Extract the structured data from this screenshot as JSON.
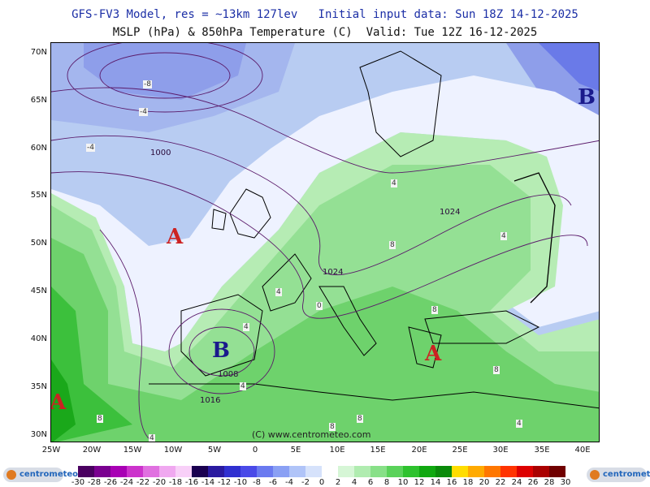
{
  "header": {
    "line1": "GFS-FV3 Model, res = ~13km 127lev   Initial input data: Sun 18Z 14-12-2025",
    "line2": "MSLP (hPa) & 850hPa Temperature (C)  Valid: Tue 12Z 16-12-2025"
  },
  "latitudes": [
    "70N",
    "65N",
    "60N",
    "55N",
    "50N",
    "45N",
    "40N",
    "35N",
    "30N"
  ],
  "longitudes": [
    "25W",
    "20W",
    "15W",
    "10W",
    "5W",
    "0",
    "5E",
    "10E",
    "15E",
    "20E",
    "25E",
    "30E",
    "35E",
    "40E"
  ],
  "credit": "(C) www.centrometeo.com",
  "pressure_centers": [
    {
      "label": "A",
      "kind": "high",
      "where": "west of Ireland"
    },
    {
      "label": "A",
      "kind": "high",
      "where": "southwest of Azores"
    },
    {
      "label": "A",
      "kind": "high",
      "where": "southern Greece"
    },
    {
      "label": "B",
      "kind": "low",
      "where": "southern Spain"
    },
    {
      "label": "B",
      "kind": "low",
      "where": "northwest Russia"
    }
  ],
  "isobar_labels": [
    "1000",
    "1024",
    "1008",
    "1016",
    "1024"
  ],
  "temperature_labels": [
    "-8",
    "-4",
    "-4",
    "4",
    "4",
    "4",
    "4",
    "8",
    "8",
    "8",
    "8",
    "8",
    "8",
    "4",
    "4",
    "0",
    "4"
  ],
  "legend": {
    "ticks": [
      "-30",
      "-28",
      "-26",
      "-24",
      "-22",
      "-20",
      "-18",
      "-16",
      "-14",
      "-12",
      "-10",
      "-8",
      "-6",
      "-4",
      "-2",
      "0",
      "2",
      "4",
      "6",
      "8",
      "10",
      "12",
      "14",
      "16",
      "18",
      "20",
      "22",
      "24",
      "26",
      "28",
      "30"
    ],
    "colors": [
      "#4a0060",
      "#7a0090",
      "#a800b4",
      "#cc33cc",
      "#e070e0",
      "#f0a8f0",
      "#f8d0f8",
      "#1a0050",
      "#2a1aa0",
      "#3030d0",
      "#4a4ae8",
      "#6a7af0",
      "#8aa0f4",
      "#b0c4f8",
      "#d6e2fb",
      "#ffffff",
      "#d6f6d6",
      "#b0ecb0",
      "#88e088",
      "#5ad25a",
      "#2ec22e",
      "#10a810",
      "#0a8a0a",
      "#ffdd00",
      "#ffaa00",
      "#ff7700",
      "#ff3300",
      "#dd0000",
      "#aa0000",
      "#700000"
    ],
    "logo_text": "centrometeo"
  }
}
